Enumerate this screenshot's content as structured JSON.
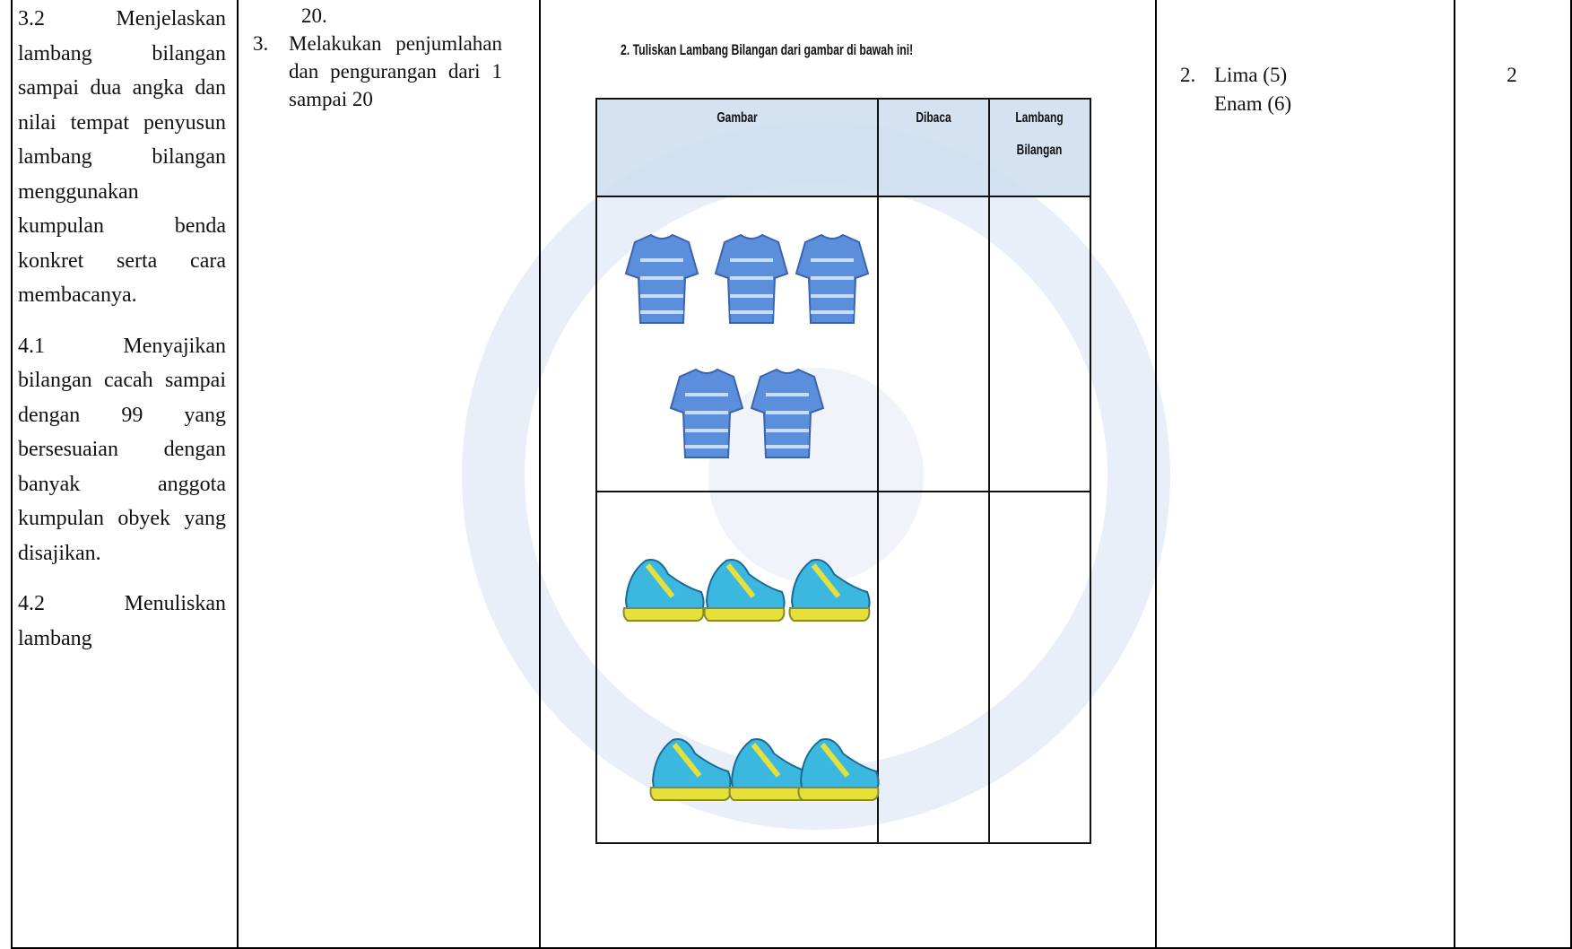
{
  "competency": [
    "3.2 Menjelaskan lambang bilangan sampai dua angka dan nilai tempat penyusun lambang bilangan menggunakan kumpulan benda konkret serta cara membacanya.",
    "4.1 Menyajikan bilangan cacah sampai dengan 99 yang bersesuaian dengan banyak anggota kumpulan obyek yang disajikan.",
    "4.2 Menuliskan lambang"
  ],
  "indicator": {
    "continued": "20.",
    "item_number": "3.",
    "item_text": "Melakukan penjumlahan dan pengurangan dari 1 sampai 20"
  },
  "question": {
    "title": "2. Tuliskan Lambang Bilangan dari gambar di bawah ini!",
    "headers": [
      "Gambar",
      "Dibaca",
      "Lambang Bilangan"
    ]
  },
  "answer": {
    "number": "2.",
    "lines": [
      "Lima (5)",
      "Enam (6)"
    ]
  },
  "score": "2"
}
